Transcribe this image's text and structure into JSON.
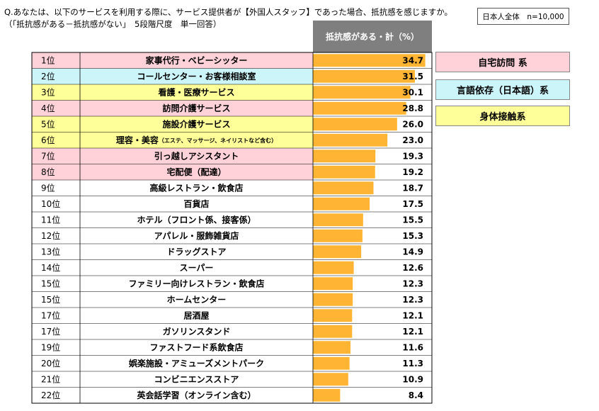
{
  "header": {
    "question_line1": "Q.あなたは、以下のサービスを利用する際に、サービス提供者が【外国人スタッフ】であった場合、抵抗感を感じますか。",
    "question_line2": "（「抵抗感がある－抵抗感がない」　5段階尺度　単一回答）",
    "sample": "日本人全体　n=10,000",
    "column_header": "抵抗感がある・計（%）"
  },
  "colors": {
    "home_visit": "#ffd1d9",
    "language": "#ccf5fa",
    "contact": "#ffff99",
    "bar": "#ffb533",
    "header_bg": "#7f7f7f"
  },
  "legend": [
    {
      "label": "自宅訪問 系",
      "group": "home_visit"
    },
    {
      "label": "言語依存（日本語）系",
      "group": "language"
    },
    {
      "label": "身体接触系",
      "group": "contact"
    }
  ],
  "chart_data": {
    "type": "bar",
    "orientation": "horizontal",
    "value_max": 35,
    "rows": [
      {
        "rank": "1位",
        "label": "家事代行・ベビーシッター",
        "note": "",
        "value": 34.7,
        "group": "home_visit"
      },
      {
        "rank": "2位",
        "label": "コールセンター・お客様相談室",
        "note": "",
        "value": 31.5,
        "group": "language"
      },
      {
        "rank": "3位",
        "label": "看護・医療サービス",
        "note": "",
        "value": 30.1,
        "group": "contact"
      },
      {
        "rank": "4位",
        "label": "訪問介護サービス",
        "note": "",
        "value": 28.8,
        "group": "home_visit"
      },
      {
        "rank": "5位",
        "label": "施設介護サービス",
        "note": "",
        "value": 26.0,
        "group": "contact"
      },
      {
        "rank": "6位",
        "label": "理容・美容",
        "note": "（エステ、マッサージ、ネイリストなど含む）",
        "value": 23.0,
        "group": "contact"
      },
      {
        "rank": "7位",
        "label": "引っ越しアシスタント",
        "note": "",
        "value": 19.3,
        "group": "home_visit"
      },
      {
        "rank": "8位",
        "label": "宅配便（配達）",
        "note": "",
        "value": 19.2,
        "group": "home_visit"
      },
      {
        "rank": "9位",
        "label": "高級レストラン・飲食店",
        "note": "",
        "value": 18.7,
        "group": ""
      },
      {
        "rank": "10位",
        "label": "百貨店",
        "note": "",
        "value": 17.5,
        "group": ""
      },
      {
        "rank": "11位",
        "label": "ホテル（フロント係、接客係）",
        "note": "",
        "value": 15.5,
        "group": ""
      },
      {
        "rank": "12位",
        "label": "アパレル・服飾雑貨店",
        "note": "",
        "value": 15.3,
        "group": ""
      },
      {
        "rank": "13位",
        "label": "ドラッグストア",
        "note": "",
        "value": 14.9,
        "group": ""
      },
      {
        "rank": "14位",
        "label": "スーパー",
        "note": "",
        "value": 12.6,
        "group": ""
      },
      {
        "rank": "15位",
        "label": "ファミリー向けレストラン・飲食店",
        "note": "",
        "value": 12.3,
        "group": ""
      },
      {
        "rank": "15位",
        "label": "ホームセンター",
        "note": "",
        "value": 12.3,
        "group": ""
      },
      {
        "rank": "17位",
        "label": "居酒屋",
        "note": "",
        "value": 12.1,
        "group": ""
      },
      {
        "rank": "17位",
        "label": "ガソリンスタンド",
        "note": "",
        "value": 12.1,
        "group": ""
      },
      {
        "rank": "19位",
        "label": "ファストフード系飲食店",
        "note": "",
        "value": 11.6,
        "group": ""
      },
      {
        "rank": "20位",
        "label": "娯楽施設・アミューズメントパーク",
        "note": "",
        "value": 11.3,
        "group": ""
      },
      {
        "rank": "21位",
        "label": "コンビニエンスストア",
        "note": "",
        "value": 10.9,
        "group": ""
      },
      {
        "rank": "22位",
        "label": "英会話学習（オンライン含む）",
        "note": "",
        "value": 8.4,
        "group": ""
      }
    ]
  }
}
